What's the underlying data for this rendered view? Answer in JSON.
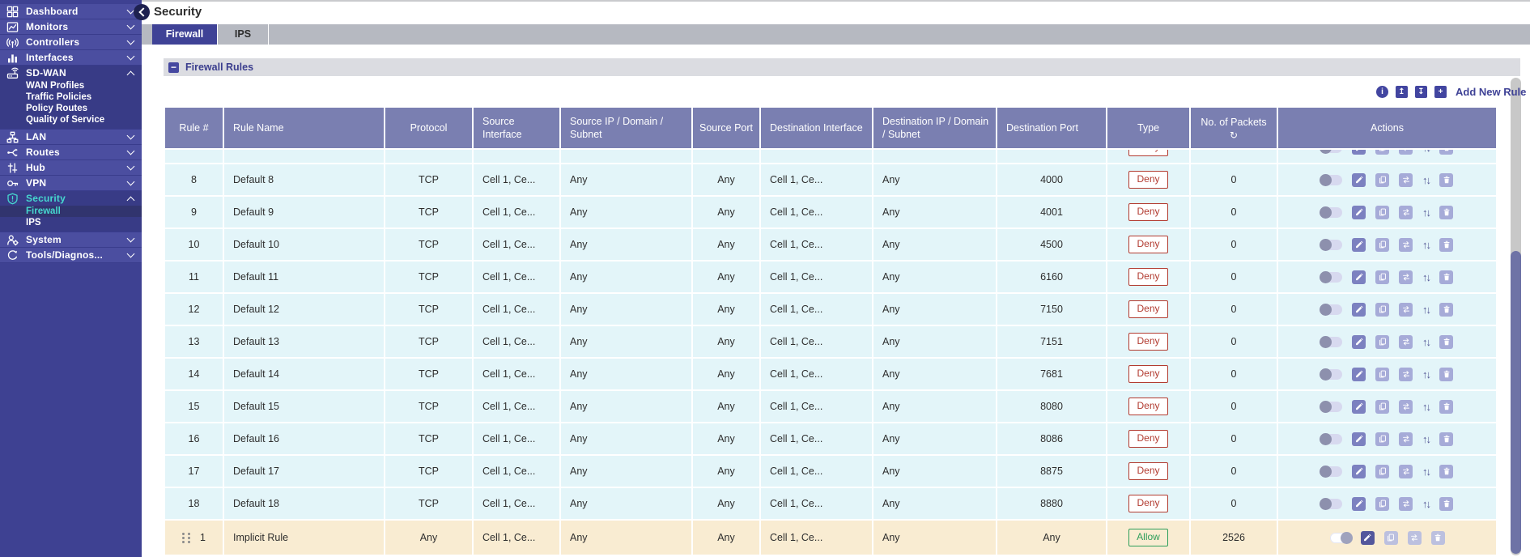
{
  "header": {
    "title": "Security"
  },
  "tabs": [
    {
      "label": "Firewall",
      "active": true
    },
    {
      "label": "IPS",
      "active": false
    }
  ],
  "section": {
    "title": "Firewall Rules"
  },
  "toolbar": {
    "icons": [
      "info-icon",
      "export-icon",
      "import-icon",
      "add-icon"
    ],
    "add_new_rule_label": "Add New Rule"
  },
  "sidebar": {
    "items": [
      {
        "label": "Dashboard",
        "icon": "dashboard-icon",
        "chevron": "down"
      },
      {
        "label": "Monitors",
        "icon": "monitors-icon",
        "chevron": "down"
      },
      {
        "label": "Controllers",
        "icon": "controllers-icon",
        "chevron": "down"
      },
      {
        "label": "Interfaces",
        "icon": "interfaces-icon",
        "chevron": "down"
      },
      {
        "label": "SD-WAN",
        "icon": "sdwan-icon",
        "chevron": "up",
        "expanded": true,
        "children": [
          {
            "label": "WAN Profiles"
          },
          {
            "label": "Traffic Policies"
          },
          {
            "label": "Policy Routes"
          },
          {
            "label": "Quality of Service"
          }
        ]
      },
      {
        "label": "LAN",
        "icon": "lan-icon",
        "chevron": "down"
      },
      {
        "label": "Routes",
        "icon": "routes-icon",
        "chevron": "down"
      },
      {
        "label": "Hub",
        "icon": "hub-icon",
        "chevron": "down"
      },
      {
        "label": "VPN",
        "icon": "vpn-icon",
        "chevron": "down"
      },
      {
        "label": "Security",
        "icon": "security-icon",
        "chevron": "up",
        "expanded": true,
        "active": true,
        "children": [
          {
            "label": "Firewall",
            "active": true
          },
          {
            "label": "IPS"
          }
        ]
      },
      {
        "label": "System",
        "icon": "system-icon",
        "chevron": "down"
      },
      {
        "label": "Tools/Diagnos...",
        "icon": "tools-icon",
        "chevron": "down"
      }
    ]
  },
  "table": {
    "columns": [
      "Rule #",
      "Rule Name",
      "Protocol",
      "Source Interface",
      "Source IP / Domain / Subnet",
      "Source Port",
      "Destination Interface",
      "Destination IP / Domain / Subnet",
      "Destination Port",
      "Type",
      "No. of Packets",
      "Actions"
    ],
    "packets_refresh_icon": "refresh-icon",
    "action_icons": [
      "enable-toggle",
      "edit-icon",
      "copy-icon",
      "move-icon",
      "reorder-icon",
      "delete-icon"
    ],
    "partial_row": {
      "num": "",
      "name": "",
      "protocol": "",
      "src_if": "",
      "src_ip": "",
      "src_port": "",
      "dst_if": "",
      "dst_ip": "",
      "dst_port": "",
      "type": "Deny",
      "packets": ""
    },
    "rows": [
      {
        "num": "8",
        "name": "Default 8",
        "protocol": "TCP",
        "src_if": "Cell 1, Ce...",
        "src_ip": "Any",
        "src_port": "Any",
        "dst_if": "Cell 1, Ce...",
        "dst_ip": "Any",
        "dst_port": "4000",
        "type": "Deny",
        "packets": "0"
      },
      {
        "num": "9",
        "name": "Default 9",
        "protocol": "TCP",
        "src_if": "Cell 1, Ce...",
        "src_ip": "Any",
        "src_port": "Any",
        "dst_if": "Cell 1, Ce...",
        "dst_ip": "Any",
        "dst_port": "4001",
        "type": "Deny",
        "packets": "0"
      },
      {
        "num": "10",
        "name": "Default 10",
        "protocol": "TCP",
        "src_if": "Cell 1, Ce...",
        "src_ip": "Any",
        "src_port": "Any",
        "dst_if": "Cell 1, Ce...",
        "dst_ip": "Any",
        "dst_port": "4500",
        "type": "Deny",
        "packets": "0"
      },
      {
        "num": "11",
        "name": "Default 11",
        "protocol": "TCP",
        "src_if": "Cell 1, Ce...",
        "src_ip": "Any",
        "src_port": "Any",
        "dst_if": "Cell 1, Ce...",
        "dst_ip": "Any",
        "dst_port": "6160",
        "type": "Deny",
        "packets": "0"
      },
      {
        "num": "12",
        "name": "Default 12",
        "protocol": "TCP",
        "src_if": "Cell 1, Ce...",
        "src_ip": "Any",
        "src_port": "Any",
        "dst_if": "Cell 1, Ce...",
        "dst_ip": "Any",
        "dst_port": "7150",
        "type": "Deny",
        "packets": "0"
      },
      {
        "num": "13",
        "name": "Default 13",
        "protocol": "TCP",
        "src_if": "Cell 1, Ce...",
        "src_ip": "Any",
        "src_port": "Any",
        "dst_if": "Cell 1, Ce...",
        "dst_ip": "Any",
        "dst_port": "7151",
        "type": "Deny",
        "packets": "0"
      },
      {
        "num": "14",
        "name": "Default 14",
        "protocol": "TCP",
        "src_if": "Cell 1, Ce...",
        "src_ip": "Any",
        "src_port": "Any",
        "dst_if": "Cell 1, Ce...",
        "dst_ip": "Any",
        "dst_port": "7681",
        "type": "Deny",
        "packets": "0"
      },
      {
        "num": "15",
        "name": "Default 15",
        "protocol": "TCP",
        "src_if": "Cell 1, Ce...",
        "src_ip": "Any",
        "src_port": "Any",
        "dst_if": "Cell 1, Ce...",
        "dst_ip": "Any",
        "dst_port": "8080",
        "type": "Deny",
        "packets": "0"
      },
      {
        "num": "16",
        "name": "Default 16",
        "protocol": "TCP",
        "src_if": "Cell 1, Ce...",
        "src_ip": "Any",
        "src_port": "Any",
        "dst_if": "Cell 1, Ce...",
        "dst_ip": "Any",
        "dst_port": "8086",
        "type": "Deny",
        "packets": "0"
      },
      {
        "num": "17",
        "name": "Default 17",
        "protocol": "TCP",
        "src_if": "Cell 1, Ce...",
        "src_ip": "Any",
        "src_port": "Any",
        "dst_if": "Cell 1, Ce...",
        "dst_ip": "Any",
        "dst_port": "8875",
        "type": "Deny",
        "packets": "0"
      },
      {
        "num": "18",
        "name": "Default 18",
        "protocol": "TCP",
        "src_if": "Cell 1, Ce...",
        "src_ip": "Any",
        "src_port": "Any",
        "dst_if": "Cell 1, Ce...",
        "dst_ip": "Any",
        "dst_port": "8880",
        "type": "Deny",
        "packets": "0"
      }
    ],
    "implicit_row": {
      "num": "1",
      "name": "Implicit Rule",
      "protocol": "Any",
      "src_if": "Cell 1, Ce...",
      "src_ip": "Any",
      "src_port": "Any",
      "dst_if": "Cell 1, Ce...",
      "dst_ip": "Any",
      "dst_port": "Any",
      "type": "Allow",
      "packets": "2526",
      "drag_handle": true
    }
  },
  "colors": {
    "accent": "#3f4296",
    "sidebar_accent": "#46d7cf",
    "deny": "#b23b30",
    "allow": "#2e9e5b",
    "row_bg": "#e3f5f9",
    "implicit_row_bg": "#f9ecd2",
    "table_header_bg": "#7a7fb1"
  }
}
